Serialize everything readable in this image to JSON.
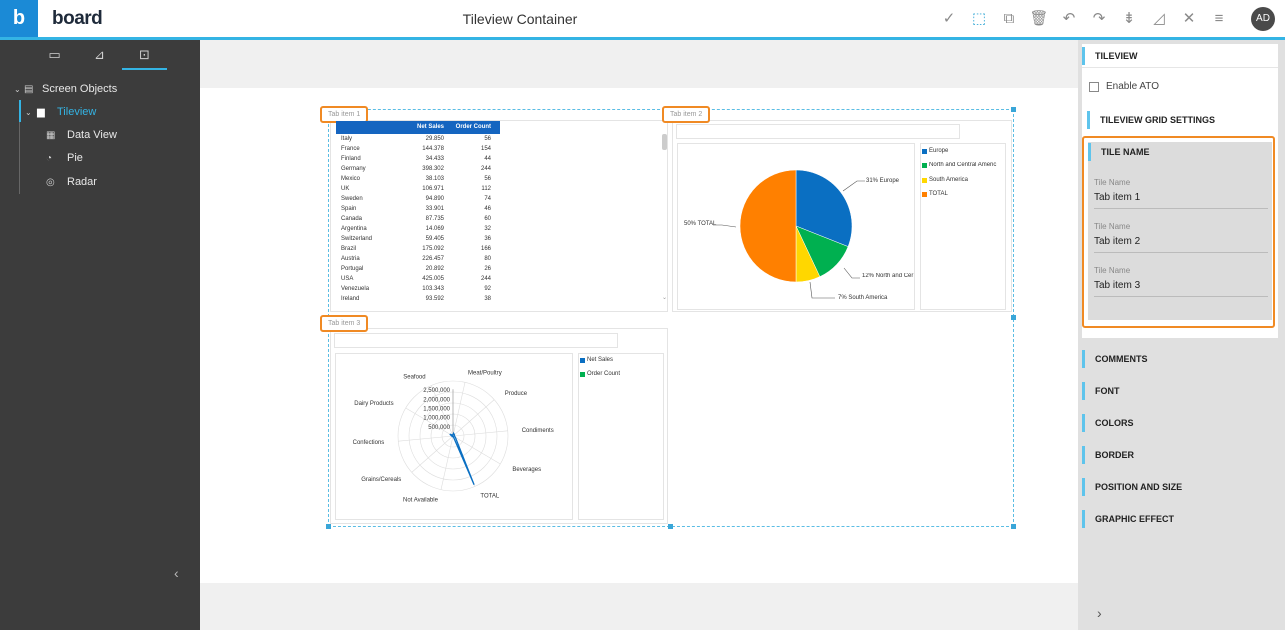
{
  "app": {
    "logo_letter": "b",
    "brand": "board",
    "title": "Tileview Container",
    "user_initials": "AD"
  },
  "toolbar_icons": [
    "check-icon",
    "edit-layout-icon",
    "copy-icon",
    "delete-icon",
    "undo-icon",
    "redo-icon",
    "sort-icon",
    "format-painter-icon",
    "close-icon",
    "menu-icon"
  ],
  "sidebar": {
    "tabs": [
      "layout-icon",
      "chart-icon",
      "object-icon"
    ],
    "tree": {
      "root": "Screen Objects",
      "selected": "Tileview",
      "children": [
        "Data View",
        "Pie",
        "Radar"
      ]
    }
  },
  "tileview": {
    "tab_labels": [
      "Tab item 1",
      "Tab item 2",
      "Tab item 3"
    ],
    "dataview": {
      "columns": [
        "",
        "Net Sales",
        "Order Count"
      ],
      "rows": [
        [
          "Italy",
          "29.850",
          "56"
        ],
        [
          "France",
          "144.378",
          "154"
        ],
        [
          "Finland",
          "34.433",
          "44"
        ],
        [
          "Germany",
          "398.302",
          "244"
        ],
        [
          "Mexico",
          "38.103",
          "56"
        ],
        [
          "UK",
          "106.971",
          "112"
        ],
        [
          "Sweden",
          "94.890",
          "74"
        ],
        [
          "Spain",
          "33.901",
          "46"
        ],
        [
          "Canada",
          "87.735",
          "60"
        ],
        [
          "Argentina",
          "14.069",
          "32"
        ],
        [
          "Switzerland",
          "59.405",
          "36"
        ],
        [
          "Brazil",
          "175.092",
          "166"
        ],
        [
          "Austria",
          "226.457",
          "80"
        ],
        [
          "Portugal",
          "20.892",
          "26"
        ],
        [
          "USA",
          "425.005",
          "244"
        ],
        [
          "Venezuela",
          "103.343",
          "92"
        ],
        [
          "Ireland",
          "93.592",
          "38"
        ]
      ]
    },
    "pie": {
      "legend": [
        "Europe",
        "North and Central Americ",
        "South America",
        "TOTAL"
      ],
      "colors": [
        "#0a6fc2",
        "#00b050",
        "#ffd700",
        "#ff8000"
      ],
      "labels": [
        "31% Europe",
        "12% North and Cer",
        "7% South America",
        "50% TOTAL"
      ]
    },
    "radar": {
      "legend": [
        "Net Sales",
        "Order Count"
      ],
      "colors": [
        "#0a6fc2",
        "#00b050"
      ],
      "categories": [
        "Meat/Poultry",
        "Produce",
        "Condiments",
        "Beverages",
        "TOTAL",
        "Not Available",
        "Grains/Cereals",
        "Confections",
        "Dairy Products",
        "Seafood"
      ],
      "ticks": [
        "2,500,000",
        "2,000,000",
        "1,500,000",
        "1,000,000",
        "500,000"
      ]
    }
  },
  "chart_data": [
    {
      "type": "pie",
      "categories": [
        "Europe",
        "North and Central America",
        "South America",
        "TOTAL"
      ],
      "values": [
        31,
        12,
        7,
        50
      ]
    },
    {
      "type": "radar",
      "categories": [
        "Meat/Poultry",
        "Produce",
        "Condiments",
        "Beverages",
        "TOTAL",
        "Not Available",
        "Grains/Cereals",
        "Confections",
        "Dairy Products",
        "Seafood"
      ],
      "series": [
        {
          "name": "Net Sales",
          "values": [
            150000,
            100000,
            80000,
            150000,
            2900000,
            0,
            50000,
            60000,
            200000,
            50000
          ]
        }
      ]
    }
  ],
  "right_panel": {
    "header": "TILEVIEW",
    "enable_ato_label": "Enable ATO",
    "grid_settings": "TILEVIEW GRID SETTINGS",
    "tile_name_section": "TILE NAME",
    "tile_names": [
      {
        "caption": "Tile Name",
        "value": "Tab item 1"
      },
      {
        "caption": "Tile Name",
        "value": "Tab item 2"
      },
      {
        "caption": "Tile Name",
        "value": "Tab item 3"
      }
    ],
    "sections": [
      "COMMENTS",
      "FONT",
      "COLORS",
      "BORDER",
      "POSITION AND SIZE",
      "GRAPHIC EFFECT"
    ]
  }
}
